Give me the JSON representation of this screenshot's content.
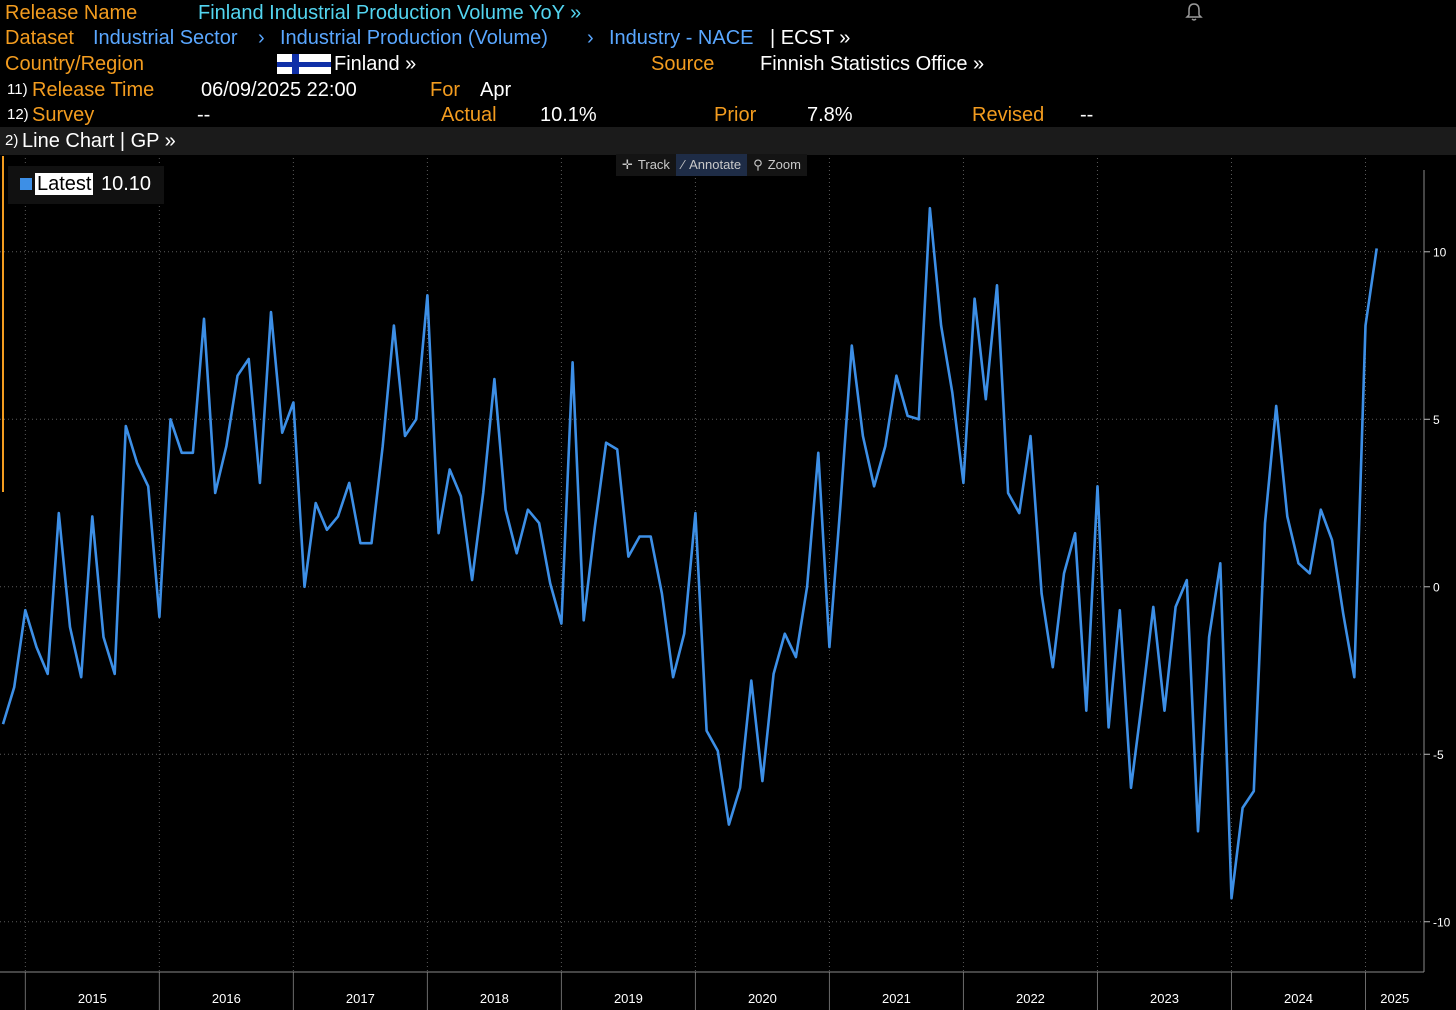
{
  "header": {
    "release_name_label": "Release Name",
    "release_name_value": "Finland Industrial Production Volume YoY »",
    "dataset_label": "Dataset",
    "dataset_path": [
      "Industrial Sector",
      "Industrial Production (Volume)",
      "Industry - NACE"
    ],
    "dataset_sep": "›",
    "dataset_suffix": "| ECST »",
    "country_label": "Country/Region",
    "country_value": "Finland »",
    "source_label": "Source",
    "source_value": "Finnish Statistics Office »",
    "release_time_num": "11)",
    "release_time_label": "Release Time",
    "release_time_value": "06/09/2025 22:00",
    "for_label": "For",
    "for_value": "Apr",
    "survey_num": "12)",
    "survey_label": "Survey",
    "survey_value": "--",
    "actual_label": "Actual",
    "actual_value": "10.1%",
    "prior_label": "Prior",
    "prior_value": "7.8%",
    "revised_label": "Revised",
    "revised_value": "--"
  },
  "chart_bar": {
    "num": "2)",
    "label": "Line Chart | GP »"
  },
  "toolbar": {
    "track": "Track",
    "annotate": "Annotate",
    "zoom": "Zoom"
  },
  "legend": {
    "name": "Latest",
    "value": "10.10"
  },
  "colors": {
    "accent_orange": "#f39c1f",
    "link_blue": "#5aa7ff",
    "title_cyan": "#53d5f0",
    "series_blue": "#3d8fe6"
  },
  "chart_data": {
    "type": "line",
    "x_tick_labels": [
      "2015",
      "2016",
      "2017",
      "2018",
      "2019",
      "2020",
      "2021",
      "2022",
      "2023",
      "2024",
      "2025"
    ],
    "y_ticks": [
      10,
      5,
      0,
      -5,
      -10
    ],
    "ylim": [
      -11.5,
      12.8
    ],
    "x_range": [
      "2014-11",
      "2025-04"
    ],
    "grid": true,
    "y_axis_side": "right",
    "series": [
      {
        "name": "Latest",
        "start": "2014-11",
        "values": [
          -4.1,
          -3.0,
          -0.7,
          -1.8,
          -2.6,
          2.2,
          -1.2,
          -2.7,
          2.1,
          -1.5,
          -2.6,
          4.8,
          3.7,
          3.0,
          -0.9,
          5.0,
          4.0,
          4.0,
          8.0,
          2.8,
          4.2,
          6.3,
          6.8,
          3.1,
          8.2,
          4.6,
          5.5,
          0.0,
          2.5,
          1.7,
          2.1,
          3.1,
          1.3,
          1.3,
          4.2,
          7.8,
          4.5,
          5.0,
          8.7,
          1.6,
          3.5,
          2.7,
          0.2,
          2.8,
          6.2,
          2.3,
          1.0,
          2.3,
          1.9,
          0.1,
          -1.1,
          6.7,
          -1.0,
          1.8,
          4.3,
          4.1,
          0.9,
          1.5,
          1.5,
          -0.2,
          -2.7,
          -1.4,
          2.2,
          -4.3,
          -4.9,
          -7.1,
          -6.0,
          -2.8,
          -5.8,
          -2.6,
          -1.4,
          -2.1,
          0.0,
          4.0,
          -1.8,
          2.5,
          7.2,
          4.5,
          3.0,
          4.2,
          6.3,
          5.1,
          5.0,
          11.3,
          7.8,
          5.8,
          3.1,
          8.6,
          5.6,
          9.0,
          2.8,
          2.2,
          4.5,
          -0.2,
          -2.4,
          0.4,
          1.6,
          -3.7,
          3.0,
          -4.2,
          -0.7,
          -6.0,
          -3.4,
          -0.6,
          -3.7,
          -0.6,
          0.2,
          -7.3,
          -1.5,
          0.7,
          -9.3,
          -6.6,
          -6.1,
          1.9,
          5.4,
          2.1,
          0.7,
          0.4,
          2.3,
          1.4,
          -0.8,
          -2.7,
          7.8,
          10.1
        ]
      }
    ]
  }
}
